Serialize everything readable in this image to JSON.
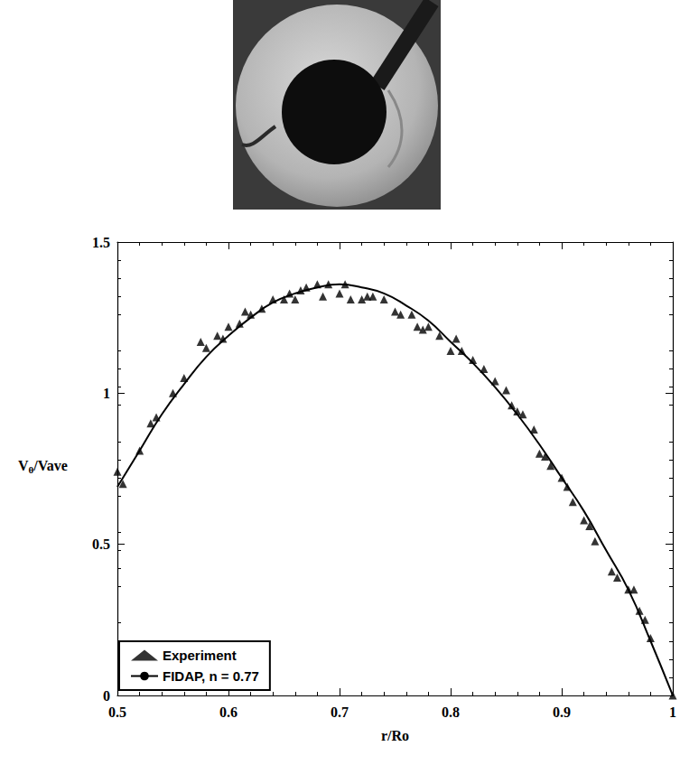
{
  "chart_data": {
    "type": "line",
    "x_label": "r/Ro",
    "y_label": "Vθ/Vave",
    "xlim": [
      0.5,
      1
    ],
    "xticks": [
      0.5,
      0.6,
      0.7,
      0.8,
      0.9,
      1
    ],
    "ylim": [
      0,
      1.5
    ],
    "yticks": [
      0,
      0.5,
      1,
      1.5
    ],
    "grid": false,
    "legend": "lower left",
    "series": [
      {
        "name": "Experiment",
        "type": "scatter",
        "marker": "triangle",
        "color": "#000000",
        "x": [
          0.5,
          0.505,
          0.52,
          0.53,
          0.535,
          0.55,
          0.56,
          0.575,
          0.58,
          0.59,
          0.595,
          0.6,
          0.61,
          0.615,
          0.62,
          0.63,
          0.64,
          0.65,
          0.655,
          0.66,
          0.665,
          0.67,
          0.68,
          0.685,
          0.69,
          0.7,
          0.705,
          0.71,
          0.72,
          0.725,
          0.73,
          0.74,
          0.75,
          0.755,
          0.765,
          0.77,
          0.775,
          0.78,
          0.79,
          0.8,
          0.805,
          0.81,
          0.82,
          0.83,
          0.84,
          0.85,
          0.855,
          0.86,
          0.865,
          0.875,
          0.88,
          0.885,
          0.89,
          0.9,
          0.905,
          0.91,
          0.92,
          0.925,
          0.93,
          0.945,
          0.95,
          0.96,
          0.965,
          0.97,
          0.975,
          0.98,
          1.0
        ],
        "values": [
          0.74,
          0.7,
          0.81,
          0.9,
          0.92,
          1.0,
          1.05,
          1.17,
          1.15,
          1.19,
          1.18,
          1.22,
          1.23,
          1.27,
          1.26,
          1.28,
          1.31,
          1.31,
          1.33,
          1.31,
          1.34,
          1.35,
          1.36,
          1.32,
          1.36,
          1.33,
          1.36,
          1.31,
          1.31,
          1.32,
          1.32,
          1.31,
          1.27,
          1.26,
          1.26,
          1.22,
          1.21,
          1.22,
          1.19,
          1.14,
          1.18,
          1.14,
          1.11,
          1.08,
          1.04,
          1.01,
          0.96,
          0.94,
          0.93,
          0.88,
          0.8,
          0.79,
          0.76,
          0.72,
          0.69,
          0.64,
          0.58,
          0.56,
          0.51,
          0.41,
          0.39,
          0.35,
          0.35,
          0.28,
          0.25,
          0.19,
          0.0
        ]
      },
      {
        "name": "FIDAP, n = 0.77",
        "type": "line",
        "line_style": "solid",
        "color": "#000000",
        "x": [
          0.5,
          0.52,
          0.54,
          0.56,
          0.58,
          0.6,
          0.62,
          0.64,
          0.66,
          0.68,
          0.7,
          0.72,
          0.74,
          0.76,
          0.78,
          0.8,
          0.82,
          0.84,
          0.86,
          0.88,
          0.9,
          0.92,
          0.94,
          0.96,
          0.98,
          1.0
        ],
        "values": [
          0.69,
          0.81,
          0.93,
          1.03,
          1.12,
          1.19,
          1.25,
          1.3,
          1.33,
          1.35,
          1.36,
          1.35,
          1.33,
          1.29,
          1.24,
          1.17,
          1.1,
          1.02,
          0.93,
          0.83,
          0.72,
          0.61,
          0.48,
          0.35,
          0.18,
          0.0
        ]
      }
    ]
  }
}
